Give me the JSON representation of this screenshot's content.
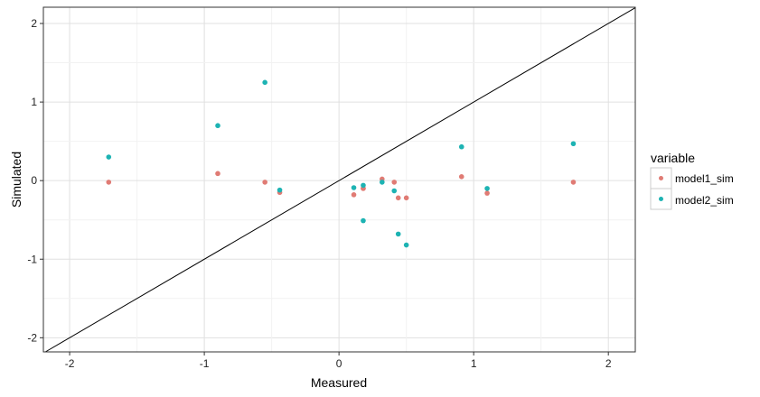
{
  "chart_data": {
    "type": "scatter",
    "title": "",
    "xlabel": "Measured",
    "ylabel": "Simulated",
    "xlim": [
      -2.195,
      2.2
    ],
    "ylim": [
      -2.18,
      2.207
    ],
    "xticks": [
      -2,
      -1,
      0,
      1,
      2
    ],
    "yticks": [
      -2,
      -1,
      0,
      1,
      2
    ],
    "grid": true,
    "reference_line": "y = x",
    "legend": {
      "title": "variable",
      "placement": "right"
    },
    "series": [
      {
        "name": "model1_sim",
        "color": "#E07B74",
        "x": [
          -1.71,
          -0.9,
          -0.55,
          -0.44,
          0.11,
          0.18,
          0.18,
          0.32,
          0.41,
          0.44,
          0.5,
          0.91,
          1.1,
          1.74
        ],
        "y": [
          -0.02,
          0.09,
          -0.02,
          -0.15,
          -0.18,
          -0.1,
          -0.1,
          0.02,
          -0.02,
          -0.22,
          -0.22,
          0.05,
          -0.16,
          -0.02
        ]
      },
      {
        "name": "model2_sim",
        "color": "#1DB3B3",
        "x": [
          -1.71,
          -0.9,
          -0.55,
          -0.44,
          0.11,
          0.18,
          0.18,
          0.32,
          0.41,
          0.44,
          0.5,
          0.91,
          1.1,
          1.74
        ],
        "y": [
          0.3,
          0.7,
          1.25,
          -0.12,
          -0.09,
          -0.06,
          -0.51,
          -0.02,
          -0.13,
          -0.68,
          -0.82,
          0.43,
          -0.1,
          0.47
        ]
      }
    ]
  }
}
